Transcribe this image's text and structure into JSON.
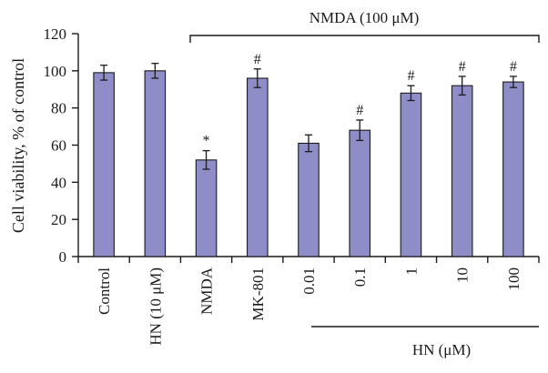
{
  "chart_data": {
    "type": "bar",
    "ylabel": "Cell viability, % of control",
    "ylim": [
      0,
      120
    ],
    "yticks": [
      0,
      20,
      40,
      60,
      80,
      100,
      120
    ],
    "categories": [
      "Control",
      "HN (10 μM)",
      "NMDA",
      "MK-801",
      "0.01",
      "0.1",
      "1",
      "10",
      "100"
    ],
    "values": [
      99,
      100,
      52,
      96,
      61,
      68,
      88,
      92,
      94
    ],
    "errors": [
      4,
      4,
      5,
      5,
      4.5,
      5.5,
      4,
      5,
      3
    ],
    "significance": [
      "",
      "",
      "*",
      "#",
      "",
      "#",
      "#",
      "#",
      "#"
    ],
    "bar_color": "#8e8dc7",
    "annotations": {
      "nmda_bracket_label": "NMDA (100 μM)",
      "hn_group_label": "HN (μM)"
    },
    "grid": false
  }
}
